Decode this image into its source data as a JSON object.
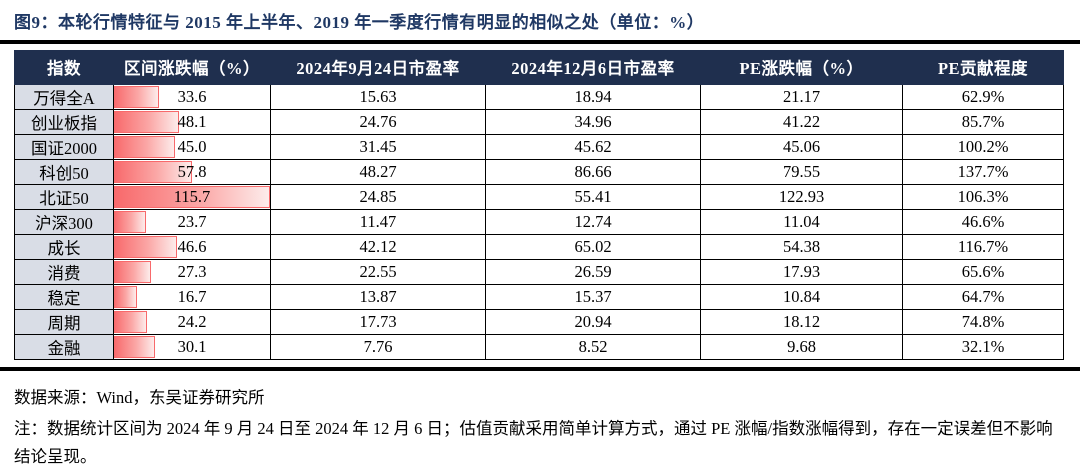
{
  "title": "图9：本轮行情特征与 2015 年上半年、2019 年一季度行情有明显的相似之处（单位：%）",
  "table": {
    "headers": [
      "指数",
      "区间涨跌幅（%）",
      "2024年9月24日市盈率",
      "2024年12月6日市盈率",
      "PE涨跌幅（%）",
      "PE贡献程度"
    ],
    "bar_max": 115.7,
    "rows": [
      {
        "index": "万得全A",
        "change": "33.6",
        "pe_0924": "15.63",
        "pe_1206": "18.94",
        "pe_change": "21.17",
        "pe_contribution": "62.9%"
      },
      {
        "index": "创业板指",
        "change": "48.1",
        "pe_0924": "24.76",
        "pe_1206": "34.96",
        "pe_change": "41.22",
        "pe_contribution": "85.7%"
      },
      {
        "index": "国证2000",
        "change": "45.0",
        "pe_0924": "31.45",
        "pe_1206": "45.62",
        "pe_change": "45.06",
        "pe_contribution": "100.2%"
      },
      {
        "index": "科创50",
        "change": "57.8",
        "pe_0924": "48.27",
        "pe_1206": "86.66",
        "pe_change": "79.55",
        "pe_contribution": "137.7%"
      },
      {
        "index": "北证50",
        "change": "115.7",
        "pe_0924": "24.85",
        "pe_1206": "55.41",
        "pe_change": "122.93",
        "pe_contribution": "106.3%"
      },
      {
        "index": "沪深300",
        "change": "23.7",
        "pe_0924": "11.47",
        "pe_1206": "12.74",
        "pe_change": "11.04",
        "pe_contribution": "46.6%"
      },
      {
        "index": "成长",
        "change": "46.6",
        "pe_0924": "42.12",
        "pe_1206": "65.02",
        "pe_change": "54.38",
        "pe_contribution": "116.7%"
      },
      {
        "index": "消费",
        "change": "27.3",
        "pe_0924": "22.55",
        "pe_1206": "26.59",
        "pe_change": "17.93",
        "pe_contribution": "65.6%"
      },
      {
        "index": "稳定",
        "change": "16.7",
        "pe_0924": "13.87",
        "pe_1206": "15.37",
        "pe_change": "10.84",
        "pe_contribution": "64.7%"
      },
      {
        "index": "周期",
        "change": "24.2",
        "pe_0924": "17.73",
        "pe_1206": "20.94",
        "pe_change": "18.12",
        "pe_contribution": "74.8%"
      },
      {
        "index": "金融",
        "change": "30.1",
        "pe_0924": "7.76",
        "pe_1206": "8.52",
        "pe_change": "9.68",
        "pe_contribution": "32.1%"
      }
    ]
  },
  "chart_data": {
    "type": "table",
    "title": "图9：本轮行情特征与 2015 年上半年、2019 年一季度行情有明显的相似之处（单位：%）",
    "columns": [
      "指数",
      "区间涨跌幅（%）",
      "2024年9月24日市盈率",
      "2024年12月6日市盈率",
      "PE涨跌幅（%）",
      "PE贡献程度"
    ],
    "rows": [
      [
        "万得全A",
        33.6,
        15.63,
        18.94,
        21.17,
        "62.9%"
      ],
      [
        "创业板指",
        48.1,
        24.76,
        34.96,
        41.22,
        "85.7%"
      ],
      [
        "国证2000",
        45.0,
        31.45,
        45.62,
        45.06,
        "100.2%"
      ],
      [
        "科创50",
        57.8,
        48.27,
        86.66,
        79.55,
        "137.7%"
      ],
      [
        "北证50",
        115.7,
        24.85,
        55.41,
        122.93,
        "106.3%"
      ],
      [
        "沪深300",
        23.7,
        11.47,
        12.74,
        11.04,
        "46.6%"
      ],
      [
        "成长",
        46.6,
        42.12,
        65.02,
        54.38,
        "116.7%"
      ],
      [
        "消费",
        27.3,
        22.55,
        26.59,
        17.93,
        "65.6%"
      ],
      [
        "稳定",
        16.7,
        13.87,
        15.37,
        10.84,
        "64.7%"
      ],
      [
        "周期",
        24.2,
        17.73,
        20.94,
        18.12,
        "74.8%"
      ],
      [
        "金融",
        30.1,
        7.76,
        8.52,
        9.68,
        "32.1%"
      ]
    ],
    "embedded_bars": {
      "column": "区间涨跌幅（%）",
      "type": "bar",
      "categories": [
        "万得全A",
        "创业板指",
        "国证2000",
        "科创50",
        "北证50",
        "沪深300",
        "成长",
        "消费",
        "稳定",
        "周期",
        "金融"
      ],
      "values": [
        33.6,
        48.1,
        45.0,
        57.8,
        115.7,
        23.7,
        46.6,
        27.3,
        16.7,
        24.2,
        30.1
      ],
      "xlim": [
        0,
        115.7
      ],
      "bar_color_start": "#f8696b",
      "bar_color_end": "#fdeceb"
    }
  },
  "colors": {
    "title_navy": "#1f3864",
    "header_bg": "#1f2f4e",
    "header_text": "#ffffff",
    "label_col_bg": "#d9dde6",
    "bar_gradient_start": "#f8696b",
    "bar_border": "#f8696b",
    "rule_black": "#000000"
  },
  "footer": {
    "source": "数据来源：Wind，东吴证券研究所",
    "note": "注：数据统计区间为 2024 年 9 月 24 日至 2024 年 12 月 6 日；估值贡献采用简单计算方式，通过 PE 涨幅/指数涨幅得到，存在一定误差但不影响结论呈现。"
  }
}
